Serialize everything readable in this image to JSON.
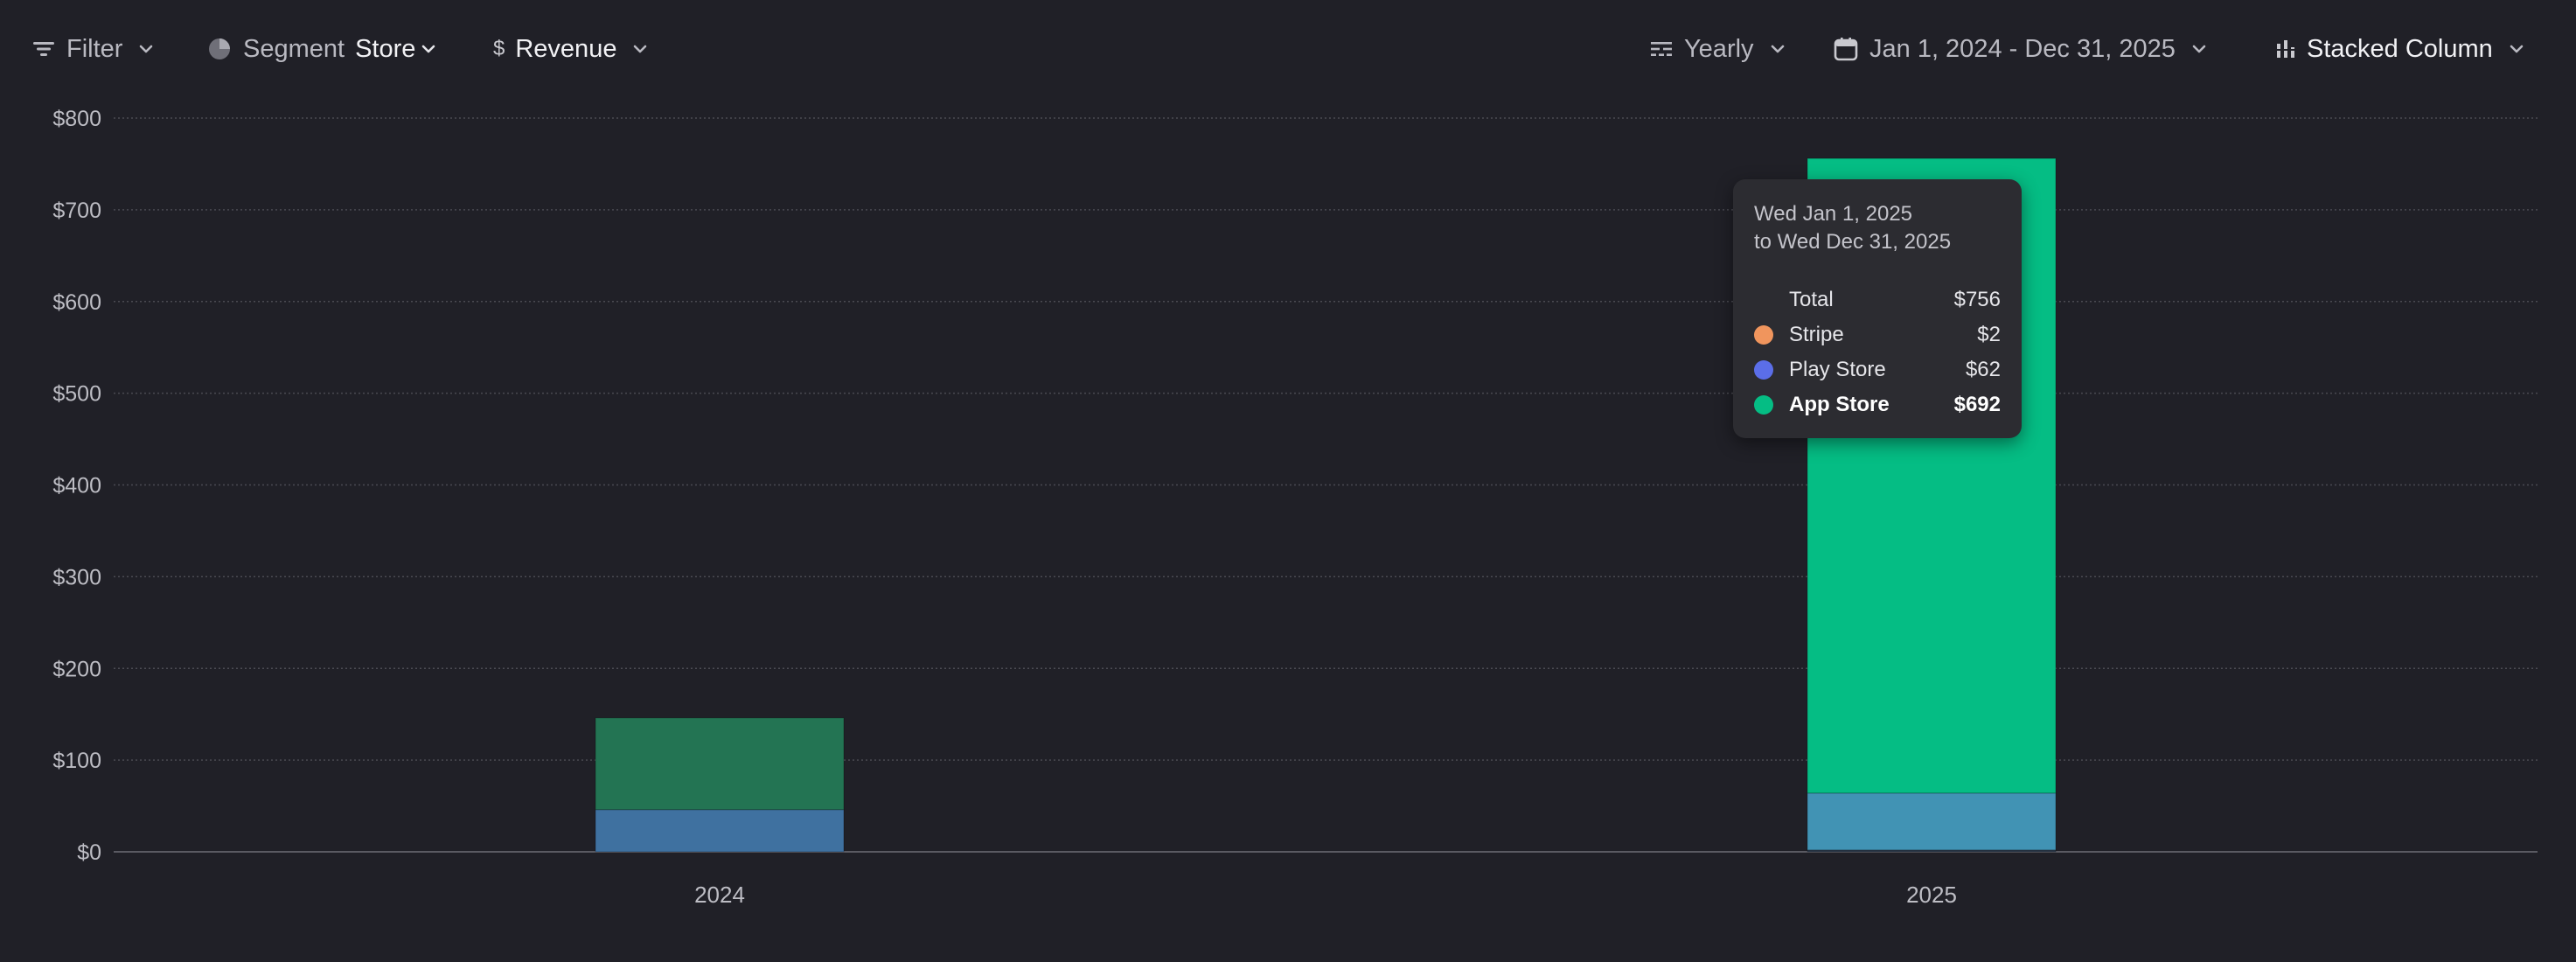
{
  "toolbar": {
    "filter": {
      "label": "Filter",
      "icon": "filter-icon"
    },
    "segment": {
      "label": "Segment",
      "value": "Store",
      "icon": "pie-chart-icon"
    },
    "metric": {
      "value": "Revenue",
      "icon": "dollar-icon"
    },
    "interval": {
      "value": "Yearly",
      "icon": "interval-icon"
    },
    "date_range": {
      "value": "Jan 1, 2024 - Dec 31, 2025",
      "icon": "calendar-icon"
    },
    "chart_type": {
      "value": "Stacked Column",
      "icon": "chart-type-icon"
    }
  },
  "chart_data": {
    "type": "bar",
    "stacked": true,
    "categories": [
      "2024",
      "2025"
    ],
    "series": [
      {
        "name": "Stripe",
        "values": [
          0,
          2
        ],
        "color": "#f0955d"
      },
      {
        "name": "Play Store",
        "values": [
          46,
          62
        ],
        "color": "#5b6ee8"
      },
      {
        "name": "App Store",
        "values": [
          100,
          692
        ],
        "color": "#05bd84"
      }
    ],
    "ylim": [
      0,
      800
    ],
    "y_ticks": [
      0,
      100,
      200,
      300,
      400,
      500,
      600,
      700,
      800
    ],
    "y_tick_format": "$",
    "grid": true,
    "colors": {
      "background": "#202027",
      "bar_2024_app_store": "#237453",
      "bar_2024_play_store": "#3f71a0",
      "bar_2025_play_store": "#4193b4",
      "bar_2025_stripe": "#2d3c4e"
    }
  },
  "tooltip": {
    "date_line1": "Wed Jan 1, 2025",
    "date_line2": "to Wed Dec 31, 2025",
    "rows": [
      {
        "name": "Total",
        "value": "$756"
      },
      {
        "name": "Stripe",
        "value": "$2",
        "color": "#f0955d"
      },
      {
        "name": "Play Store",
        "value": "$62",
        "color": "#5b6ee8"
      },
      {
        "name": "App Store",
        "value": "$692",
        "color": "#05bd84"
      }
    ]
  }
}
